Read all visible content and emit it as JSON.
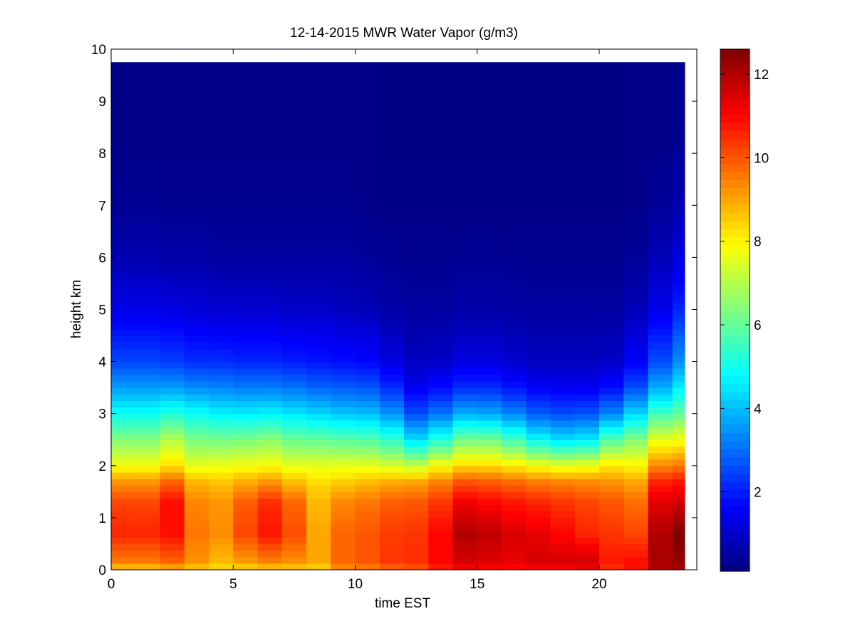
{
  "chart_data": {
    "type": "heatmap",
    "title": "12-14-2015 MWR Water Vapor (g/m3)",
    "xlabel": "time EST",
    "ylabel": "height km",
    "xlim": [
      0,
      24
    ],
    "ylim": [
      0,
      10
    ],
    "xticks": [
      0,
      5,
      10,
      15,
      20
    ],
    "yticks": [
      0,
      1,
      2,
      3,
      4,
      5,
      6,
      7,
      8,
      9,
      10
    ],
    "colorbar": {
      "colormap": "jet",
      "range": [
        0.1,
        12.6
      ],
      "ticks": [
        2,
        4,
        6,
        8,
        10,
        12
      ]
    },
    "times": [
      0,
      1,
      2,
      3,
      4,
      5,
      6,
      7,
      8,
      9,
      10,
      11,
      12,
      13,
      14,
      15,
      16,
      17,
      18,
      19,
      20,
      21,
      22,
      23
    ],
    "profiles": [
      {
        "h": [
          0,
          0.1,
          0.7,
          1.3,
          1.7,
          2.0,
          2.5,
          3.0,
          3.5,
          4.0,
          5.0,
          6.0,
          7.0,
          8.5
        ],
        "v": [
          8.0,
          9.4,
          10.6,
          10.2,
          9.2,
          7.8,
          6.4,
          4.9,
          3.6,
          2.5,
          1.4,
          0.7,
          0.35,
          0.2
        ]
      },
      {
        "h": [
          0,
          0.1,
          0.7,
          1.3,
          1.7,
          2.0,
          2.5,
          3.0,
          3.5,
          4.0,
          5.0,
          6.0,
          7.0,
          8.5
        ],
        "v": [
          8.0,
          9.4,
          10.6,
          10.2,
          9.2,
          7.8,
          6.4,
          4.9,
          3.6,
          2.5,
          1.4,
          0.7,
          0.35,
          0.2
        ]
      },
      {
        "h": [
          0,
          0.1,
          0.7,
          1.3,
          1.7,
          2.0,
          2.5,
          3.0,
          3.5,
          4.0,
          5.0,
          6.0,
          7.0,
          8.5
        ],
        "v": [
          8.2,
          9.7,
          10.9,
          10.9,
          9.8,
          8.3,
          7.0,
          5.2,
          3.6,
          2.4,
          1.3,
          0.6,
          0.3,
          0.2
        ]
      },
      {
        "h": [
          0,
          0.1,
          0.7,
          1.3,
          1.7,
          2.0,
          2.5,
          3.0,
          3.5,
          4.0,
          5.0,
          6.0,
          7.0,
          8.5
        ],
        "v": [
          8.0,
          9.2,
          9.6,
          9.4,
          8.8,
          7.6,
          6.3,
          4.9,
          3.4,
          2.2,
          1.2,
          0.6,
          0.3,
          0.2
        ]
      },
      {
        "h": [
          0,
          0.1,
          0.7,
          1.3,
          1.7,
          2.0,
          2.5,
          3.0,
          3.5,
          4.0,
          5.0,
          6.0,
          7.0,
          8.5
        ],
        "v": [
          8.0,
          8.7,
          9.3,
          9.2,
          8.6,
          7.7,
          6.2,
          4.7,
          3.3,
          2.2,
          1.1,
          0.5,
          0.3,
          0.2
        ]
      },
      {
        "h": [
          0,
          0.1,
          0.7,
          1.3,
          1.7,
          2.0,
          2.5,
          3.0,
          3.5,
          4.0,
          5.0,
          6.0,
          7.0,
          8.5
        ],
        "v": [
          8.0,
          9.0,
          10.2,
          9.9,
          8.9,
          7.8,
          6.3,
          4.6,
          3.2,
          2.1,
          1.1,
          0.5,
          0.3,
          0.2
        ]
      },
      {
        "h": [
          0,
          0.1,
          0.7,
          1.3,
          1.7,
          2.0,
          2.5,
          3.0,
          3.5,
          4.0,
          5.0,
          6.0,
          7.0,
          8.5
        ],
        "v": [
          8.1,
          9.3,
          10.8,
          10.5,
          9.2,
          7.9,
          6.5,
          4.7,
          3.2,
          2.1,
          1.1,
          0.5,
          0.3,
          0.2
        ]
      },
      {
        "h": [
          0,
          0.1,
          0.7,
          1.3,
          1.7,
          2.0,
          2.5,
          3.0,
          3.5,
          4.0,
          5.0,
          6.0,
          7.0,
          8.5
        ],
        "v": [
          8.0,
          9.2,
          10.1,
          9.8,
          8.7,
          7.6,
          6.1,
          4.5,
          3.1,
          2.0,
          1.0,
          0.5,
          0.3,
          0.2
        ]
      },
      {
        "h": [
          0,
          0.1,
          0.7,
          1.3,
          1.7,
          2.0,
          2.5,
          3.0,
          3.5,
          4.0,
          5.0,
          6.0,
          7.0,
          8.5
        ],
        "v": [
          7.9,
          9.0,
          9.0,
          8.8,
          8.3,
          7.6,
          6.0,
          4.3,
          2.9,
          1.9,
          1.0,
          0.5,
          0.3,
          0.2
        ]
      },
      {
        "h": [
          0,
          0.1,
          0.7,
          1.3,
          1.7,
          2.0,
          2.5,
          3.0,
          3.5,
          4.0,
          5.0,
          6.0,
          7.0,
          8.5
        ],
        "v": [
          8.8,
          9.8,
          9.8,
          9.4,
          8.5,
          7.6,
          5.9,
          4.1,
          2.8,
          1.8,
          0.9,
          0.5,
          0.3,
          0.2
        ]
      },
      {
        "h": [
          0,
          0.1,
          0.7,
          1.3,
          1.7,
          2.0,
          2.5,
          3.0,
          3.5,
          4.0,
          5.0,
          6.0,
          7.0,
          8.5
        ],
        "v": [
          9.0,
          10.0,
          10.0,
          9.6,
          8.7,
          7.6,
          5.8,
          4.0,
          2.7,
          1.7,
          0.8,
          0.4,
          0.25,
          0.2
        ]
      },
      {
        "h": [
          0,
          0.1,
          0.7,
          1.3,
          1.7,
          2.0,
          2.5,
          3.0,
          3.5,
          4.0,
          5.0,
          6.0,
          7.0,
          8.5
        ],
        "v": [
          9.2,
          10.4,
          10.3,
          9.9,
          8.9,
          7.4,
          5.4,
          3.5,
          2.2,
          1.3,
          0.6,
          0.35,
          0.2,
          0.15
        ]
      },
      {
        "h": [
          0,
          0.1,
          0.7,
          1.3,
          1.7,
          2.0,
          2.5,
          3.0,
          3.5,
          4.0,
          5.0,
          6.0,
          7.0,
          8.5
        ],
        "v": [
          9.5,
          10.5,
          10.4,
          10.0,
          9.0,
          7.2,
          4.4,
          2.6,
          1.5,
          0.9,
          0.5,
          0.3,
          0.2,
          0.15
        ]
      },
      {
        "h": [
          0,
          0.1,
          0.7,
          1.3,
          1.7,
          2.0,
          2.5,
          3.0,
          3.5,
          4.0,
          5.0,
          6.0,
          7.0,
          8.5
        ],
        "v": [
          10.3,
          11.0,
          11.0,
          10.4,
          9.4,
          7.9,
          5.2,
          3.1,
          1.8,
          1.0,
          0.5,
          0.3,
          0.2,
          0.15
        ]
      },
      {
        "h": [
          0,
          0.1,
          0.7,
          1.3,
          1.7,
          2.0,
          2.5,
          3.0,
          3.5,
          4.0,
          5.0,
          6.0,
          7.0,
          8.5
        ],
        "v": [
          10.7,
          11.5,
          12.0,
          11.2,
          10.0,
          8.4,
          6.2,
          3.8,
          2.2,
          1.3,
          0.6,
          0.35,
          0.2,
          0.15
        ]
      },
      {
        "h": [
          0,
          0.1,
          0.7,
          1.3,
          1.7,
          2.0,
          2.5,
          3.0,
          3.5,
          4.0,
          5.0,
          6.0,
          7.0,
          8.5
        ],
        "v": [
          10.7,
          11.4,
          11.8,
          11.0,
          9.9,
          8.4,
          6.2,
          3.7,
          2.2,
          1.3,
          0.6,
          0.35,
          0.2,
          0.15
        ]
      },
      {
        "h": [
          0,
          0.1,
          0.7,
          1.3,
          1.7,
          2.0,
          2.5,
          3.0,
          3.5,
          4.0,
          5.0,
          6.0,
          7.0,
          8.5
        ],
        "v": [
          10.6,
          11.3,
          11.5,
          10.8,
          9.7,
          8.1,
          5.6,
          3.3,
          1.9,
          1.1,
          0.55,
          0.3,
          0.2,
          0.15
        ]
      },
      {
        "h": [
          0,
          0.1,
          0.7,
          1.3,
          1.7,
          2.0,
          2.5,
          3.0,
          3.5,
          4.0,
          5.0,
          6.0,
          7.0,
          8.5
        ],
        "v": [
          10.6,
          11.6,
          11.3,
          10.6,
          9.5,
          7.8,
          4.8,
          2.8,
          1.6,
          0.9,
          0.5,
          0.3,
          0.2,
          0.15
        ]
      },
      {
        "h": [
          0,
          0.1,
          0.7,
          1.3,
          1.7,
          2.0,
          2.5,
          3.0,
          3.5,
          4.0,
          5.0,
          6.0,
          7.0,
          8.5
        ],
        "v": [
          10.6,
          11.6,
          11.0,
          10.4,
          9.4,
          7.6,
          4.4,
          2.6,
          1.5,
          0.9,
          0.5,
          0.3,
          0.2,
          0.15
        ]
      },
      {
        "h": [
          0,
          0.1,
          0.7,
          1.3,
          1.7,
          2.0,
          2.5,
          3.0,
          3.5,
          4.0,
          5.0,
          6.0,
          7.0,
          8.5
        ],
        "v": [
          10.6,
          11.7,
          10.6,
          10.2,
          9.3,
          7.7,
          4.6,
          2.7,
          1.5,
          0.9,
          0.5,
          0.3,
          0.2,
          0.15
        ]
      },
      {
        "h": [
          0,
          0.1,
          0.7,
          1.3,
          1.7,
          2.0,
          2.5,
          3.0,
          3.5,
          4.0,
          5.0,
          6.0,
          7.0,
          8.5
        ],
        "v": [
          10.2,
          10.8,
          10.4,
          10.0,
          9.2,
          8.2,
          5.8,
          3.3,
          1.8,
          1.0,
          0.5,
          0.3,
          0.2,
          0.15
        ]
      },
      {
        "h": [
          0,
          0.1,
          0.7,
          1.3,
          1.7,
          2.0,
          2.5,
          3.0,
          3.5,
          4.0,
          5.0,
          6.0,
          7.0,
          8.5
        ],
        "v": [
          10.6,
          11.0,
          10.2,
          9.7,
          9.0,
          8.0,
          6.4,
          4.3,
          2.6,
          1.6,
          0.8,
          0.4,
          0.25,
          0.2
        ]
      },
      {
        "h": [
          0,
          0.1,
          0.7,
          1.3,
          1.7,
          2.0,
          2.5,
          3.0,
          3.5,
          4.0,
          5.0,
          6.0,
          7.0,
          8.5
        ],
        "v": [
          11.9,
          12.1,
          12.0,
          11.4,
          10.6,
          9.4,
          7.6,
          5.6,
          3.8,
          2.6,
          1.4,
          0.8,
          0.4,
          0.2
        ]
      },
      {
        "h": [
          0,
          0.1,
          0.7,
          1.3,
          1.7,
          2.0,
          2.5,
          3.0,
          3.5,
          4.0,
          5.0,
          6.0,
          7.0,
          8.5
        ],
        "v": [
          12.0,
          12.3,
          12.6,
          11.6,
          10.8,
          9.6,
          7.8,
          6.0,
          4.6,
          3.4,
          2.1,
          1.3,
          0.7,
          0.3
        ]
      }
    ]
  }
}
